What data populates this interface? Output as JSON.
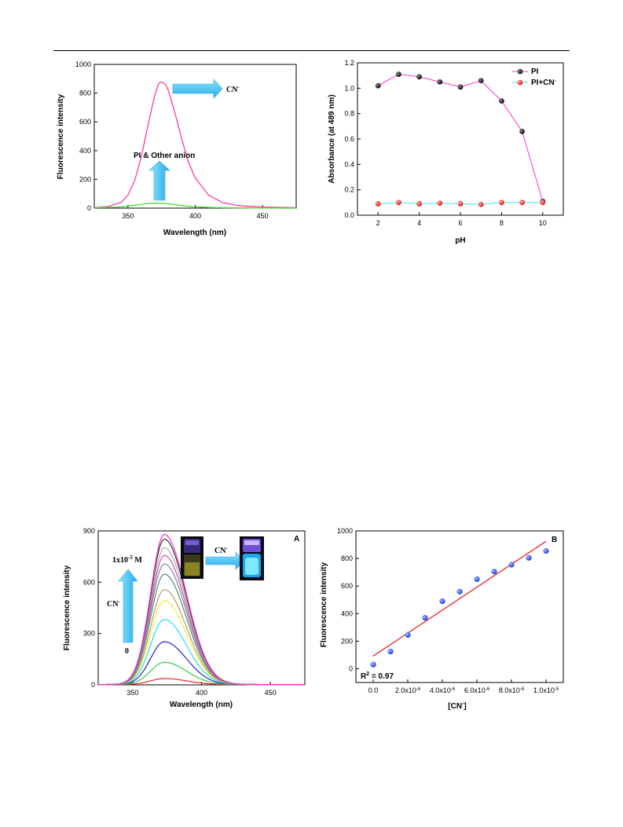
{
  "chart_data": [
    {
      "type": "line",
      "xlabel": "Wavelength (nm)",
      "ylabel": "Fluorescence intensity",
      "xlim": [
        325,
        475
      ],
      "ylim": [
        0,
        1000
      ],
      "x_ticks": [
        350,
        400,
        450
      ],
      "y_ticks": [
        0,
        200,
        400,
        600,
        800,
        1000
      ],
      "annotations": [
        "CN",
        "-",
        "PI & Other anion"
      ],
      "series": [
        {
          "name": "CN-",
          "color": "#ff3aa6",
          "x": [
            325,
            335,
            345,
            350,
            355,
            360,
            365,
            370,
            373,
            375,
            378,
            380,
            385,
            390,
            395,
            400,
            410,
            420,
            430,
            440,
            450,
            460,
            475
          ],
          "y": [
            4,
            10,
            40,
            90,
            190,
            360,
            580,
            790,
            870,
            878,
            860,
            820,
            660,
            480,
            320,
            210,
            90,
            40,
            20,
            12,
            8,
            5,
            3
          ]
        },
        {
          "name": "PI & Other anion",
          "color": "#44dd33",
          "x": [
            325,
            340,
            350,
            360,
            365,
            370,
            375,
            380,
            390,
            400,
            410,
            420,
            440,
            475
          ],
          "y": [
            2,
            6,
            14,
            26,
            32,
            35,
            34,
            30,
            18,
            9,
            5,
            3,
            1,
            0
          ]
        }
      ]
    },
    {
      "type": "line",
      "xlabel": "pH",
      "ylabel": "Absorbance (at 489 nm)",
      "xlim": [
        1,
        11
      ],
      "ylim": [
        0,
        1.2
      ],
      "x_ticks": [
        2,
        4,
        6,
        8,
        10
      ],
      "y_ticks": [
        "0.0",
        "0.2",
        "0.4",
        "0.6",
        "0.8",
        "1.0",
        "1.2"
      ],
      "legend": {
        "position": "top-right",
        "PI": "PI",
        "PICN_base": "PI+CN",
        "PICN_sup": "-"
      },
      "series": [
        {
          "name": "PI",
          "line_color": "#ff33cc",
          "marker_color": "#111111",
          "x": [
            2,
            3,
            4,
            5,
            6,
            7,
            8,
            9,
            10
          ],
          "y": [
            1.02,
            1.11,
            1.09,
            1.05,
            1.01,
            1.06,
            0.9,
            0.66,
            0.11
          ]
        },
        {
          "name": "PI+CN-",
          "line_color": "#33e8ee",
          "marker_color": "#ee3322",
          "x": [
            2,
            3,
            4,
            5,
            6,
            7,
            8,
            9,
            10
          ],
          "y": [
            0.09,
            0.1,
            0.09,
            0.095,
            0.09,
            0.085,
            0.1,
            0.1,
            0.1
          ]
        }
      ]
    },
    {
      "type": "line",
      "panel_label": "A",
      "xlabel": "Wavelength (nm)",
      "ylabel": "Fluorescence intensity",
      "xlim": [
        325,
        475
      ],
      "ylim": [
        0,
        900
      ],
      "x_ticks": [
        350,
        400,
        450
      ],
      "y_ticks": [
        0,
        300,
        600,
        900
      ],
      "annotations": {
        "top": "1x10",
        "top_exp": "-5",
        "top_unit": " M",
        "cn": "CN",
        "cn_sup": "-",
        "zero": "0",
        "arrow": "CN",
        "arrow_sup": "-"
      },
      "peak_x": 373,
      "series_peaks": [
        35,
        130,
        250,
        380,
        490,
        555,
        645,
        705,
        755,
        800,
        850,
        878
      ],
      "series_colors": [
        "#ee2222",
        "#33cc44",
        "#2222cc",
        "#22ddee",
        "#eeee33",
        "#bb9966",
        "#558877",
        "#778899",
        "#cc55aa",
        "#aaaaaa",
        "#333333",
        "#ee33cc"
      ]
    },
    {
      "type": "scatter",
      "panel_label": "B",
      "xlabel_base": "[CN",
      "xlabel_sup": "-",
      "xlabel_end": "]",
      "ylabel": "Fluorescence intensity",
      "xlim": [
        -1e-06,
        1.1e-05
      ],
      "ylim": [
        -100,
        1000
      ],
      "x_ticks": [
        {
          "v": 0,
          "b": "0.0",
          "e": ""
        },
        {
          "v": 2e-06,
          "b": "2.0x10",
          "e": "-6"
        },
        {
          "v": 4e-06,
          "b": "4.0x10",
          "e": "-6"
        },
        {
          "v": 6e-06,
          "b": "6.0x10",
          "e": "-6"
        },
        {
          "v": 8e-06,
          "b": "8.0x10",
          "e": "-6"
        },
        {
          "v": 1e-05,
          "b": "1.0x10",
          "e": "-5"
        }
      ],
      "y_ticks": [
        0,
        200,
        400,
        600,
        800,
        1000
      ],
      "r2_base": "R",
      "r2_exp": "2",
      "r2_end": " = 0.97",
      "points": {
        "x": [
          0,
          1e-06,
          2e-06,
          3e-06,
          4e-06,
          5e-06,
          6e-06,
          7e-06,
          8e-06,
          9e-06,
          1e-05
        ],
        "y": [
          30,
          125,
          245,
          370,
          490,
          560,
          650,
          705,
          755,
          805,
          855
        ]
      },
      "fit": {
        "x": [
          0,
          1e-05
        ],
        "y": [
          92,
          925
        ],
        "color": "#ee2222"
      },
      "marker_color": "#2244ee"
    }
  ],
  "photo": {
    "before_label": "",
    "after_label": ""
  }
}
